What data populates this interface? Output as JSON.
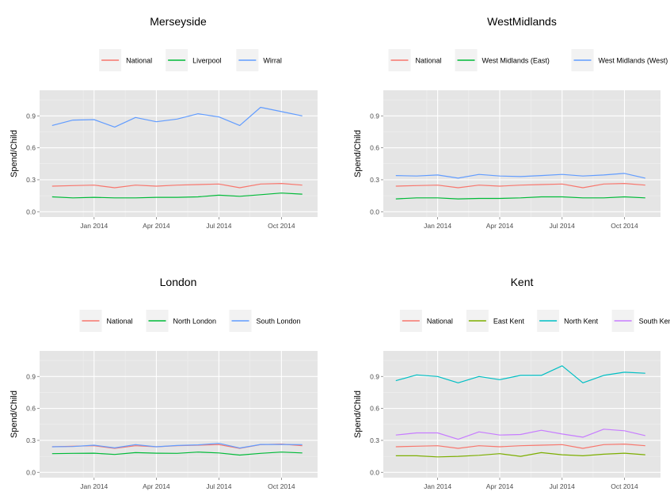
{
  "chart_data": [
    {
      "type": "line",
      "title": "Merseyside",
      "ylabel": "Spend/Child",
      "xlabel": "",
      "ylim": [
        -0.05,
        1.14
      ],
      "yticks": [
        "0.0",
        "0.3",
        "0.6",
        "0.9"
      ],
      "xticks": [
        "Jan 2014",
        "Apr 2014",
        "Jul 2014",
        "Oct 2014"
      ],
      "x": [
        "Nov 2013",
        "Dec 2013",
        "Jan 2014",
        "Feb 2014",
        "Mar 2014",
        "Apr 2014",
        "May 2014",
        "Jun 2014",
        "Jul 2014",
        "Aug 2014",
        "Sep 2014",
        "Oct 2014",
        "Nov 2014"
      ],
      "grid": true,
      "legend_position": "top",
      "series": [
        {
          "name": "National",
          "color": "#F8766D",
          "values": [
            0.24,
            0.245,
            0.25,
            0.225,
            0.25,
            0.24,
            0.25,
            0.255,
            0.26,
            0.225,
            0.26,
            0.265,
            0.25
          ]
        },
        {
          "name": "Liverpool",
          "color": "#00BA38",
          "values": [
            0.14,
            0.13,
            0.135,
            0.13,
            0.13,
            0.135,
            0.135,
            0.14,
            0.155,
            0.145,
            0.16,
            0.175,
            0.165
          ]
        },
        {
          "name": "Wirral",
          "color": "#619CFF",
          "values": [
            0.81,
            0.86,
            0.865,
            0.795,
            0.885,
            0.845,
            0.87,
            0.92,
            0.89,
            0.81,
            0.98,
            0.94,
            0.9
          ]
        }
      ]
    },
    {
      "type": "line",
      "title": "WestMidlands",
      "ylabel": "Spend/Child",
      "xlabel": "",
      "ylim": [
        -0.05,
        1.14
      ],
      "yticks": [
        "0.0",
        "0.3",
        "0.6",
        "0.9"
      ],
      "xticks": [
        "Jan 2014",
        "Apr 2014",
        "Jul 2014",
        "Oct 2014"
      ],
      "x": [
        "Nov 2013",
        "Dec 2013",
        "Jan 2014",
        "Feb 2014",
        "Mar 2014",
        "Apr 2014",
        "May 2014",
        "Jun 2014",
        "Jul 2014",
        "Aug 2014",
        "Sep 2014",
        "Oct 2014",
        "Nov 2014"
      ],
      "grid": true,
      "legend_position": "top",
      "series": [
        {
          "name": "National",
          "color": "#F8766D",
          "values": [
            0.24,
            0.245,
            0.25,
            0.225,
            0.25,
            0.24,
            0.25,
            0.255,
            0.26,
            0.225,
            0.26,
            0.265,
            0.25
          ]
        },
        {
          "name": "West Midlands (East)",
          "color": "#00BA38",
          "values": [
            0.12,
            0.13,
            0.13,
            0.12,
            0.125,
            0.125,
            0.13,
            0.14,
            0.14,
            0.13,
            0.13,
            0.14,
            0.13
          ]
        },
        {
          "name": "West Midlands (West)",
          "color": "#619CFF",
          "values": [
            0.34,
            0.335,
            0.345,
            0.315,
            0.35,
            0.335,
            0.33,
            0.34,
            0.35,
            0.335,
            0.345,
            0.36,
            0.315
          ]
        }
      ]
    },
    {
      "type": "line",
      "title": "London",
      "ylabel": "Spend/Child",
      "xlabel": "",
      "ylim": [
        -0.05,
        1.14
      ],
      "yticks": [
        "0.0",
        "0.3",
        "0.6",
        "0.9"
      ],
      "xticks": [
        "Jan 2014",
        "Apr 2014",
        "Jul 2014",
        "Oct 2014"
      ],
      "x": [
        "Nov 2013",
        "Dec 2013",
        "Jan 2014",
        "Feb 2014",
        "Mar 2014",
        "Apr 2014",
        "May 2014",
        "Jun 2014",
        "Jul 2014",
        "Aug 2014",
        "Sep 2014",
        "Oct 2014",
        "Nov 2014"
      ],
      "grid": true,
      "legend_position": "top",
      "series": [
        {
          "name": "National",
          "color": "#F8766D",
          "values": [
            0.24,
            0.245,
            0.25,
            0.225,
            0.25,
            0.24,
            0.25,
            0.255,
            0.26,
            0.225,
            0.26,
            0.265,
            0.25
          ]
        },
        {
          "name": "North London",
          "color": "#00BA38",
          "values": [
            0.175,
            0.178,
            0.18,
            0.168,
            0.185,
            0.18,
            0.178,
            0.19,
            0.182,
            0.162,
            0.178,
            0.19,
            0.182
          ]
        },
        {
          "name": "South London",
          "color": "#619CFF",
          "values": [
            0.24,
            0.242,
            0.255,
            0.23,
            0.26,
            0.24,
            0.252,
            0.258,
            0.272,
            0.228,
            0.262,
            0.262,
            0.26
          ]
        }
      ]
    },
    {
      "type": "line",
      "title": "Kent",
      "ylabel": "Spend/Child",
      "xlabel": "",
      "ylim": [
        -0.05,
        1.14
      ],
      "yticks": [
        "0.0",
        "0.3",
        "0.6",
        "0.9"
      ],
      "xticks": [
        "Jan 2014",
        "Apr 2014",
        "Jul 2014",
        "Oct 2014"
      ],
      "x": [
        "Nov 2013",
        "Dec 2013",
        "Jan 2014",
        "Feb 2014",
        "Mar 2014",
        "Apr 2014",
        "May 2014",
        "Jun 2014",
        "Jul 2014",
        "Aug 2014",
        "Sep 2014",
        "Oct 2014",
        "Nov 2014"
      ],
      "grid": true,
      "legend_position": "top",
      "series": [
        {
          "name": "National",
          "color": "#F8766D",
          "values": [
            0.24,
            0.245,
            0.25,
            0.225,
            0.25,
            0.24,
            0.25,
            0.255,
            0.26,
            0.225,
            0.26,
            0.265,
            0.25
          ]
        },
        {
          "name": "East Kent",
          "color": "#7CAE00",
          "values": [
            0.155,
            0.155,
            0.145,
            0.15,
            0.16,
            0.175,
            0.15,
            0.185,
            0.165,
            0.155,
            0.17,
            0.18,
            0.165
          ]
        },
        {
          "name": "North Kent",
          "color": "#00BFC4",
          "values": [
            0.86,
            0.915,
            0.9,
            0.84,
            0.9,
            0.87,
            0.91,
            0.91,
            1.0,
            0.84,
            0.91,
            0.94,
            0.93
          ]
        },
        {
          "name": "South Kent",
          "color": "#C77CFF",
          "values": [
            0.35,
            0.37,
            0.37,
            0.31,
            0.38,
            0.35,
            0.355,
            0.395,
            0.36,
            0.33,
            0.405,
            0.39,
            0.345
          ]
        }
      ]
    }
  ]
}
